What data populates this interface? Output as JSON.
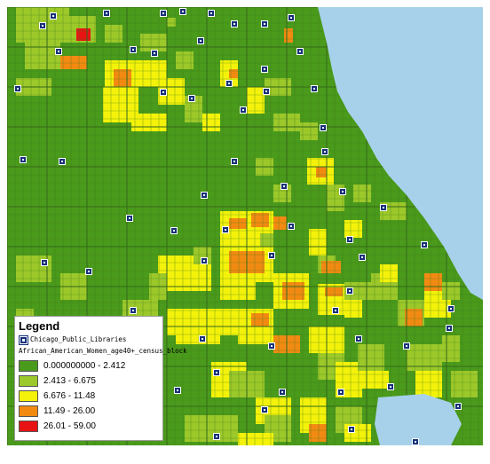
{
  "colors": {
    "water": "#a7d1ea",
    "base": "#4a9a1c",
    "block_lines": "#3c7a16",
    "library_icon": "#17327a"
  },
  "legend": {
    "title": "Legend",
    "library_layer": "Chicago_Public_Libraries",
    "library_icon": "library-square-icon",
    "layer_name": "African_American_Women_age40+_census_block",
    "classes": [
      {
        "label": "0.000000000 - 2.412",
        "color": "#4a9a1c"
      },
      {
        "label": "2.413 - 6.675",
        "color": "#9cc82a"
      },
      {
        "label": "6.676 - 11.48",
        "color": "#f4f20a"
      },
      {
        "label": "11.49 - 26.00",
        "color": "#f28a12"
      },
      {
        "label": "26.01 - 59.00",
        "color": "#e81414"
      }
    ]
  }
}
